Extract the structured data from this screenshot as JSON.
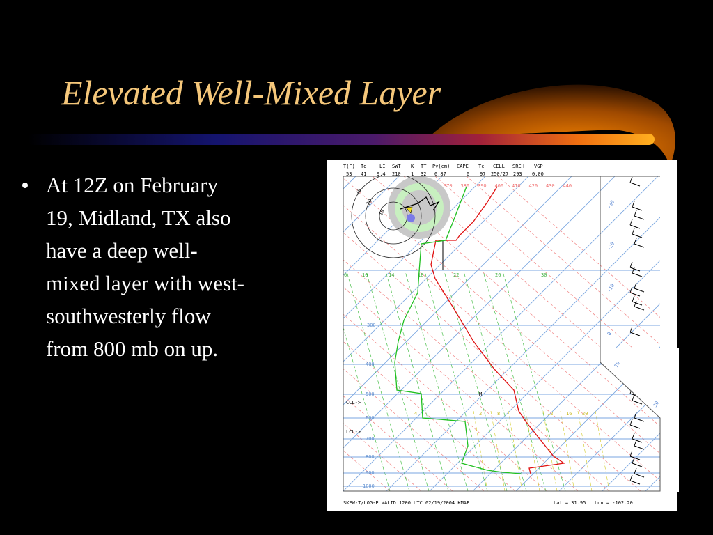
{
  "slide": {
    "title": "Elevated Well-Mixed Layer",
    "bullet_lines": [
      "At 12Z on February",
      "19, Midland, TX also",
      "have a deep well-",
      "mixed layer with west-",
      "southwesterly flow",
      "from 800 mb on up."
    ]
  },
  "sounding": {
    "header_labels": [
      "T(F)",
      "Td",
      "LI",
      "SWT",
      "K",
      "TT",
      "Pv(cm)",
      "CAPE",
      "Tc",
      "CELL",
      "SREH",
      "VGP"
    ],
    "header_values": [
      "53",
      "41",
      "9.4",
      "210",
      "1",
      "32",
      "0.87",
      "0",
      "97",
      "250/27",
      "293",
      "0.00"
    ],
    "theta_labels": [
      "370",
      "380",
      "390",
      "400",
      "410",
      "420",
      "430",
      "440"
    ],
    "mixing_ratio_labels": [
      "6",
      "10",
      "14",
      "18",
      "22",
      "26",
      "30"
    ],
    "pressure_labels": [
      "300",
      "400",
      "500",
      "600",
      "700",
      "800",
      "900",
      "1000"
    ],
    "level_markers": [
      "CCL->",
      "LCL->"
    ],
    "temperature_labels": [
      "-30",
      "-20",
      "-10",
      "0",
      "10",
      "30"
    ],
    "hodograph_labels": [
      "30",
      "20",
      "10"
    ],
    "lower_mixing_labels": [
      "4",
      "2",
      "8",
      "12",
      "16",
      "20"
    ],
    "marker": "M",
    "footer_left": "SKEW-T/LOG-P VALID 1200 UTC 02/19/2004   KMAF",
    "footer_right": "Lat =    31.95 , Lon =   -102.20"
  }
}
